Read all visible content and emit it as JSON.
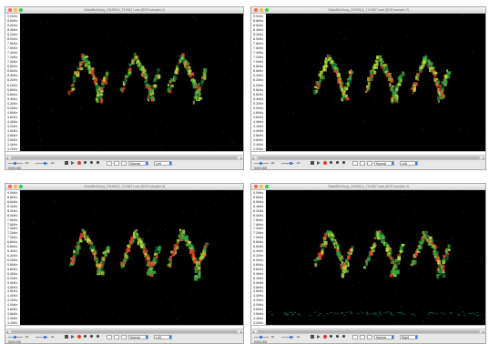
{
  "windows": [
    {
      "id": "top-left",
      "title": "/Data/BirdSong_20190511_T100817.wav  [8193 samples 1]",
      "axis_ticks": [
        "9.0kHz",
        "8.8kHz",
        "8.6kHz",
        "8.4kHz",
        "8.2kHz",
        "8.0kHz",
        "7.8kHz",
        "7.6kHz",
        "7.4kHz",
        "7.2kHz",
        "7.0kHz",
        "6.8kHz",
        "6.6kHz",
        "6.4kHz",
        "6.2kHz",
        "6.0kHz",
        "5.8kHz",
        "5.6kHz",
        "5.4kHz",
        "5.2kHz",
        "5.0kHz",
        "4.8kHz",
        "4.6kHz",
        "4.4kHz",
        "4.2kHz",
        "4.0kHz",
        "3.8kHz",
        "3.6kHz",
        "3.4kHz",
        "3.2kHz"
      ],
      "scale_value": "Normal",
      "channel_value": "Left",
      "readout": "00:00.000"
    },
    {
      "id": "top-right",
      "title": "/Data/BirdSong_20190511_T100817.wav  [8193 samples 2]",
      "axis_ticks": [
        "9.0kHz",
        "8.8kHz",
        "8.6kHz",
        "8.4kHz",
        "8.2kHz",
        "8.0kHz",
        "7.8kHz",
        "7.6kHz",
        "7.4kHz",
        "7.2kHz",
        "7.0kHz",
        "6.8kHz",
        "6.6kHz",
        "6.4kHz",
        "6.2kHz",
        "6.0kHz",
        "5.8kHz",
        "5.6kHz",
        "5.4kHz",
        "5.2kHz",
        "5.0kHz",
        "4.8kHz",
        "4.6kHz",
        "4.4kHz",
        "4.2kHz",
        "4.0kHz",
        "3.8kHz",
        "3.6kHz",
        "3.4kHz",
        "3.2kHz"
      ],
      "scale_value": "Normal",
      "channel_value": "Left",
      "readout": "00:00.000"
    },
    {
      "id": "bottom-left",
      "title": "/Data/BirdSong_20190511_T100817.wav  [8193 samples 3]",
      "axis_ticks": [
        "9.0kHz",
        "8.8kHz",
        "8.6kHz",
        "8.4kHz",
        "8.2kHz",
        "8.0kHz",
        "7.8kHz",
        "7.6kHz",
        "7.4kHz",
        "7.2kHz",
        "7.0kHz",
        "6.8kHz",
        "6.6kHz",
        "6.4kHz",
        "6.2kHz",
        "6.0kHz",
        "5.8kHz",
        "5.6kHz",
        "5.4kHz",
        "5.2kHz",
        "5.0kHz",
        "4.8kHz",
        "4.6kHz",
        "4.4kHz",
        "4.2kHz",
        "4.0kHz",
        "3.8kHz",
        "3.6kHz",
        "3.4kHz",
        "3.2kHz"
      ],
      "scale_value": "Normal",
      "channel_value": "Left",
      "readout": "00:00.000"
    },
    {
      "id": "bottom-right",
      "title": "/Data/BirdSong_20190511_T100817.wav  [8193 samples 4]",
      "axis_ticks": [
        "9.0kHz",
        "8.8kHz",
        "8.6kHz",
        "8.4kHz",
        "8.2kHz",
        "8.0kHz",
        "7.8kHz",
        "7.6kHz",
        "7.4kHz",
        "7.2kHz",
        "7.0kHz",
        "6.8kHz",
        "6.6kHz",
        "6.4kHz",
        "6.2kHz",
        "6.0kHz",
        "5.8kHz",
        "5.6kHz",
        "5.4kHz",
        "5.2kHz",
        "5.0kHz",
        "4.8kHz",
        "4.6kHz",
        "4.4kHz",
        "4.2kHz",
        "4.0kHz",
        "3.8kHz",
        "3.6kHz",
        "3.4kHz",
        "3.2kHz"
      ],
      "scale_value": "Normal",
      "channel_value": "Right",
      "readout": "00:00.000"
    }
  ],
  "toolbar": {
    "gain_labels": [
      "dB",
      "dB"
    ],
    "gain_values": [
      "-60",
      "-40"
    ]
  },
  "colors": {
    "spectrogram_bg": "#000000",
    "low_energy": "#0b5a33",
    "mid_energy": "#2fa53a",
    "high_energy": "#b9d63a",
    "peak_energy": "#e0452a",
    "accent": "#1e6fd9"
  },
  "icons": [
    "close-icon",
    "minimize-icon",
    "zoom-icon",
    "play-icon",
    "stop-icon",
    "record-icon",
    "loop-icon"
  ]
}
